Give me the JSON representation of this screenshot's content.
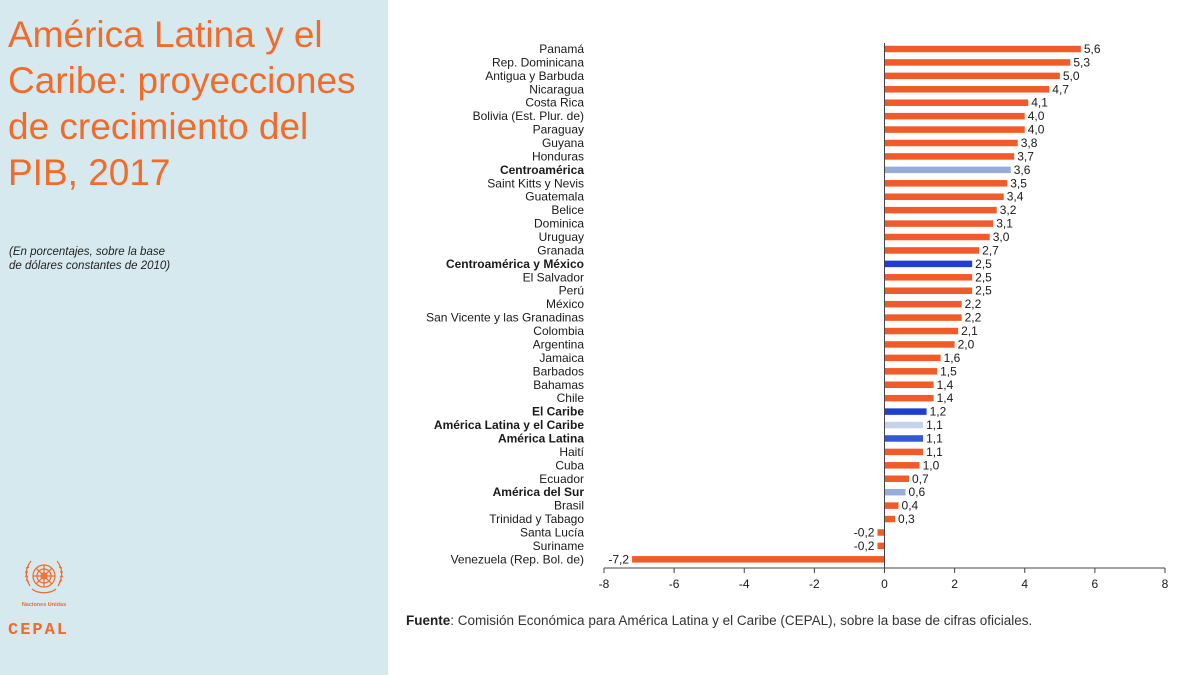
{
  "sidebar": {
    "title": "América Latina y el Caribe: proyecciones de crecimiento del PIB, 2017",
    "subtitle": "(En porcentajes, sobre la base de dólares constantes de 2010)",
    "un_name": "Naciones Unidas",
    "org": "CEPAL"
  },
  "source": {
    "label": "Fuente",
    "text": ": Comisión Económica para América Latina y el Caribe (CEPAL), sobre la base de cifras oficiales."
  },
  "colors": {
    "accent": "#f26b2b",
    "country_bar": "#f15a29",
    "sidebar_bg": "#d6e9ee",
    "regional_dark": "#1f3fd0",
    "regional_mid": "#3358d4",
    "regional_light": "#98acd8",
    "regional_pale": "#c6d2ec"
  },
  "chart_data": {
    "type": "bar",
    "orientation": "horizontal",
    "xlim": [
      -8,
      8
    ],
    "xticks": [
      -8,
      -6,
      -4,
      -2,
      0,
      2,
      4,
      6,
      8
    ],
    "grid": false,
    "legend": "none",
    "categories": [
      "Panamá",
      "Rep. Dominicana",
      "Antigua y Barbuda",
      "Nicaragua",
      "Costa Rica",
      "Bolivia (Est. Plur. de)",
      "Paraguay",
      "Guyana",
      "Honduras",
      "Centroamérica",
      "Saint Kitts y Nevis",
      "Guatemala",
      "Belice",
      "Dominica",
      "Uruguay",
      "Granada",
      "Centroamérica y México",
      "El Salvador",
      "Perú",
      "México",
      "San Vicente y las Granadinas",
      "Colombia",
      "Argentina",
      "Jamaica",
      "Barbados",
      "Bahamas",
      "Chile",
      "El Caribe",
      "América Latina y el Caribe",
      "América Latina",
      "Haití",
      "Cuba",
      "Ecuador",
      "América del Sur",
      "Brasil",
      "Trinidad y Tabago",
      "Santa Lucía",
      "Suriname",
      "Venezuela (Rep. Bol. de)"
    ],
    "values": [
      5.6,
      5.3,
      5.0,
      4.7,
      4.1,
      4.0,
      4.0,
      3.8,
      3.7,
      3.6,
      3.5,
      3.4,
      3.2,
      3.1,
      3.0,
      2.7,
      2.5,
      2.5,
      2.5,
      2.2,
      2.2,
      2.1,
      2.0,
      1.6,
      1.5,
      1.4,
      1.4,
      1.2,
      1.1,
      1.1,
      1.1,
      1.0,
      0.7,
      0.6,
      0.4,
      0.3,
      -0.2,
      -0.2,
      -7.2
    ],
    "value_labels": [
      "5,6",
      "5,3",
      "5,0",
      "4,7",
      "4,1",
      "4,0",
      "4,0",
      "3,8",
      "3,7",
      "3,6",
      "3,5",
      "3,4",
      "3,2",
      "3,1",
      "3,0",
      "2,7",
      "2,5",
      "2,5",
      "2,5",
      "2,2",
      "2,2",
      "2,1",
      "2,0",
      "1,6",
      "1,5",
      "1,4",
      "1,4",
      "1,2",
      "1,1",
      "1,1",
      "1,1",
      "1,0",
      "0,7",
      "0,6",
      "0,4",
      "0,3",
      "-0,2",
      "-0,2",
      "-7,2"
    ],
    "regional": {
      "Centroamérica": "regional_light",
      "Centroamérica y México": "regional_dark",
      "El Caribe": "regional_dark",
      "América Latina y el Caribe": "regional_pale",
      "América Latina": "regional_mid",
      "América del Sur": "regional_light"
    }
  }
}
